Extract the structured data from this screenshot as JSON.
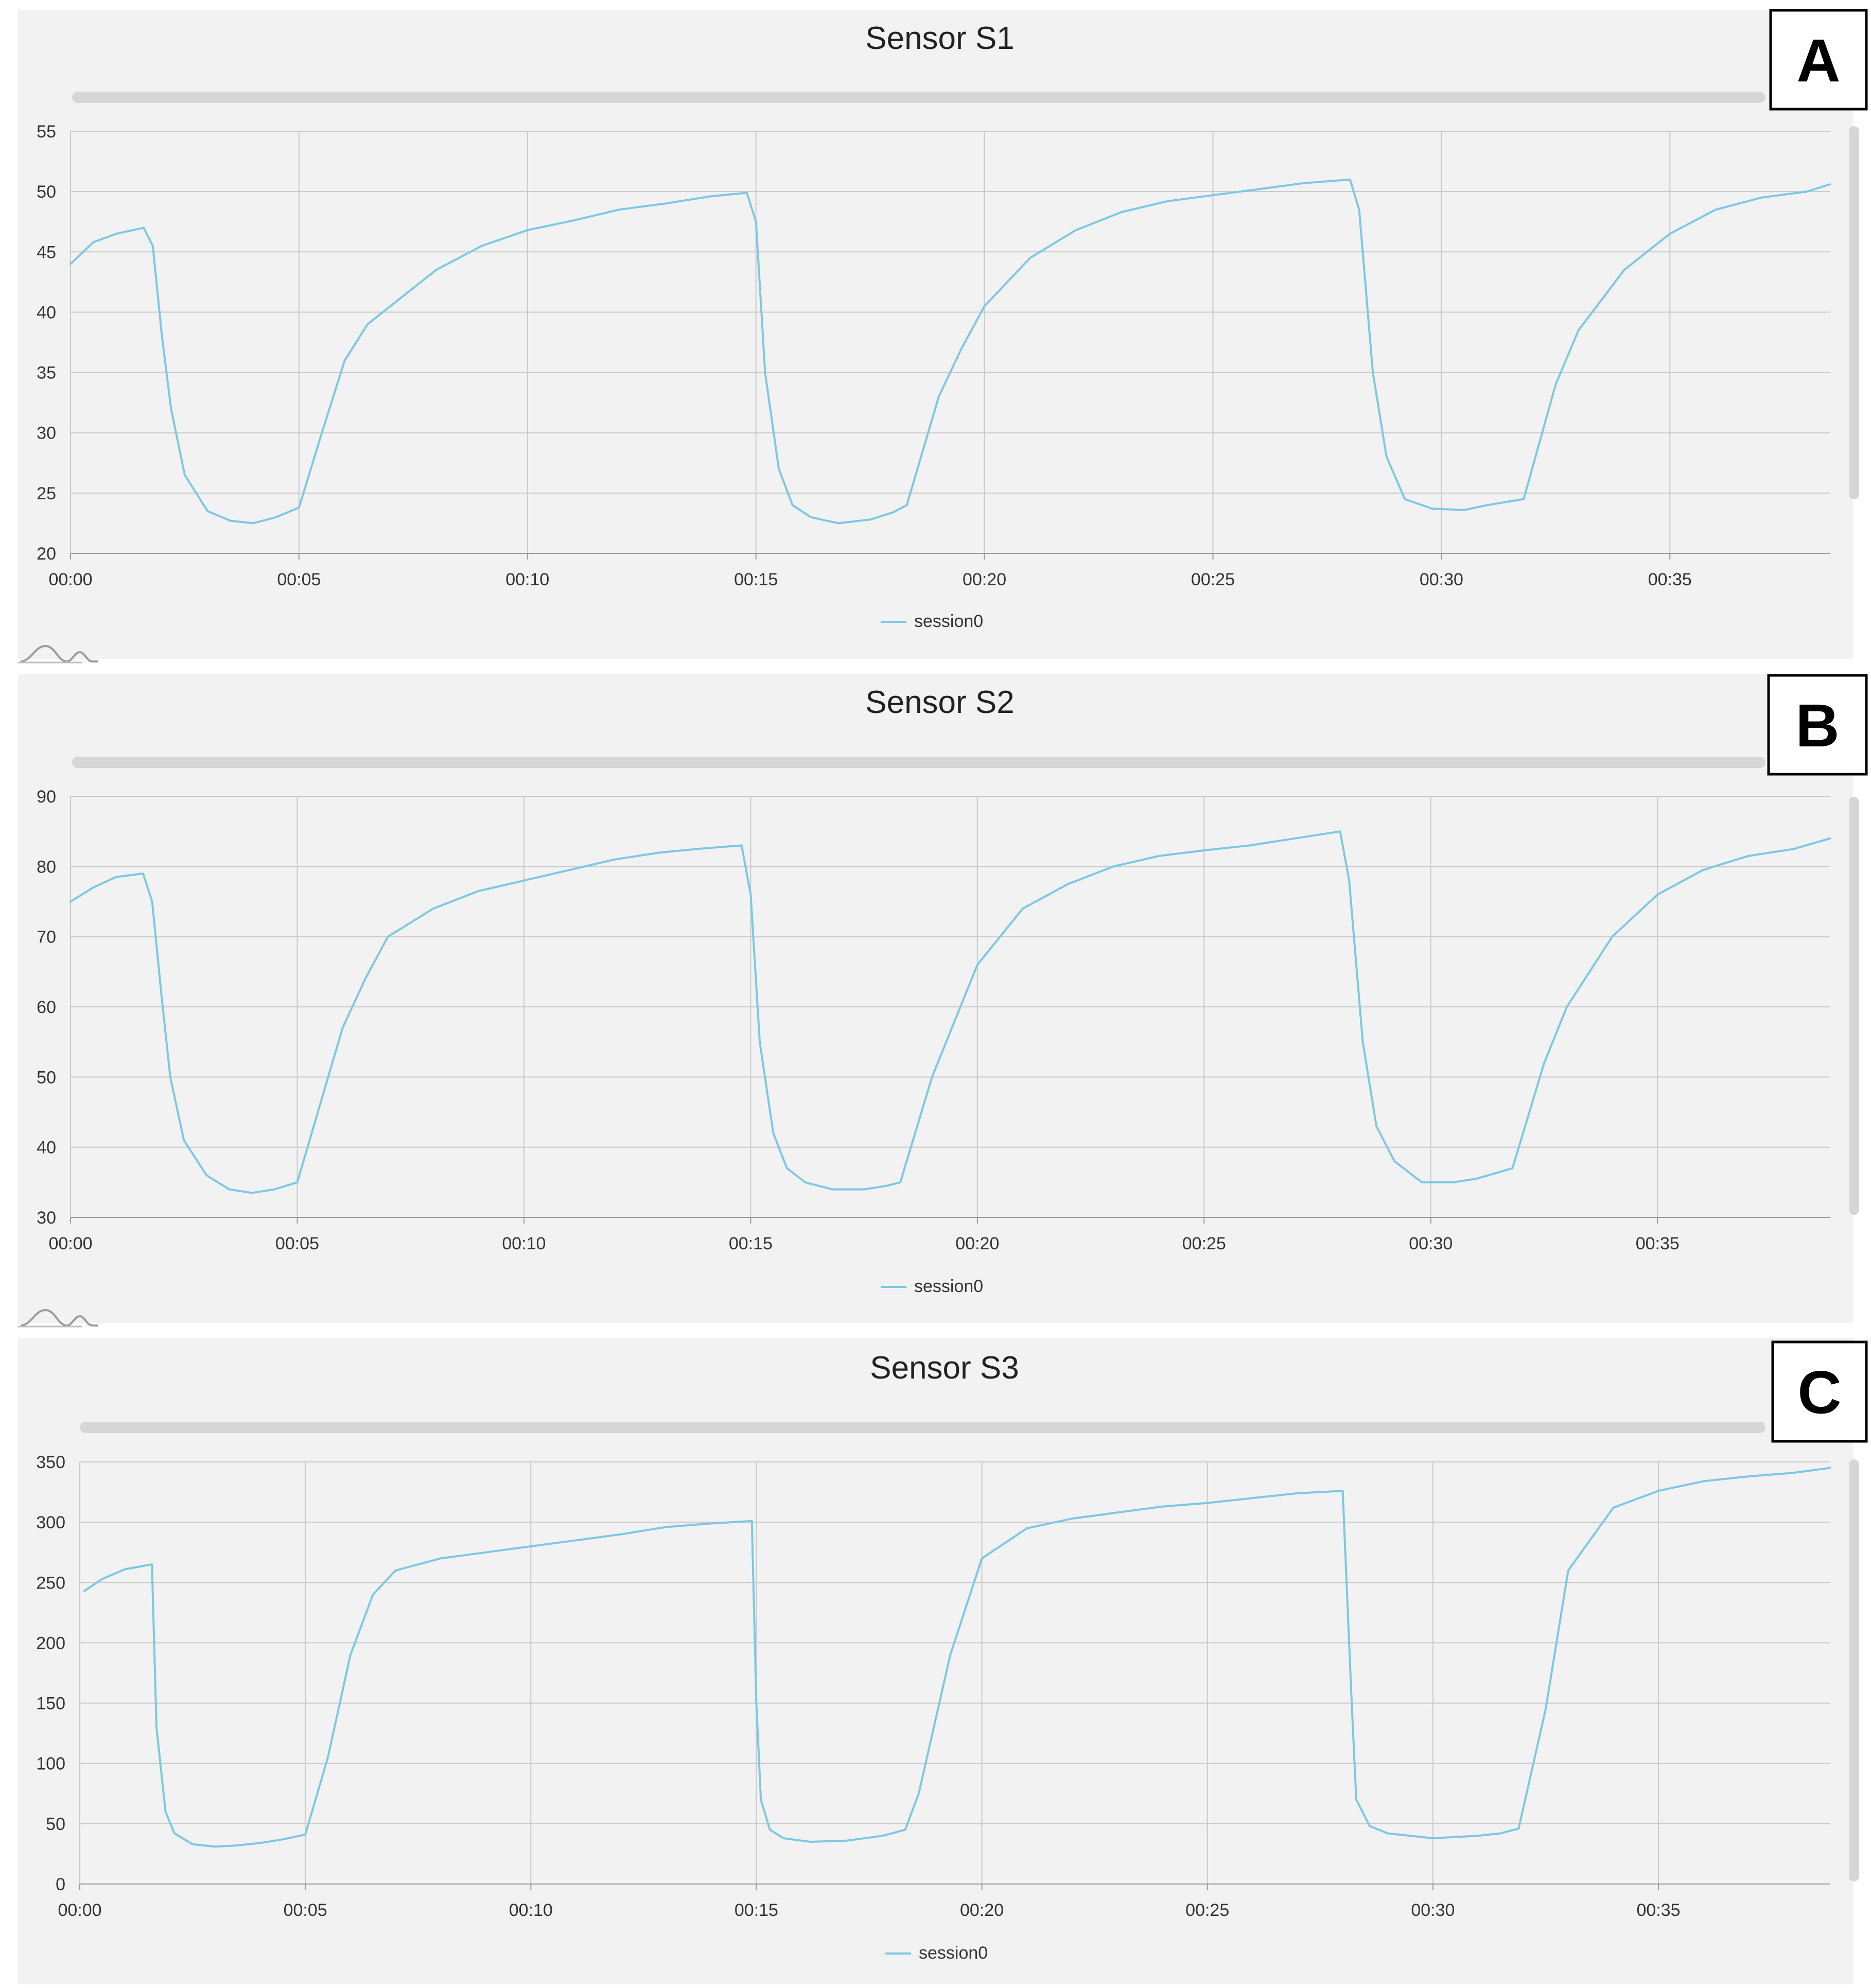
{
  "colors": {
    "series": "#7ec8e3",
    "panel_background": "#f2f2f2",
    "grid": "#c9c9c9",
    "scrollbar": "#d6d6d6",
    "badge_border": "#000000"
  },
  "panels": [
    {
      "badge": "A",
      "legend_label": "session0",
      "icons": {
        "toolbar": "waveform-icon"
      }
    },
    {
      "badge": "B",
      "legend_label": "session0",
      "icons": {
        "toolbar": "waveform-icon"
      }
    },
    {
      "badge": "C",
      "legend_label": "session0",
      "icons": {
        "toolbar": "waveform-icon"
      }
    }
  ],
  "chart_data": [
    {
      "type": "line",
      "title": "Sensor S1",
      "xlabel": "",
      "ylabel": "",
      "x_unit": "mm:ss",
      "xlim": [
        "00:00",
        "00:38.5"
      ],
      "ylim": [
        20,
        55
      ],
      "x_ticks": [
        "00:00",
        "00:05",
        "00:10",
        "00:15",
        "00:20",
        "00:25",
        "00:30",
        "00:35"
      ],
      "y_ticks": [
        20,
        25,
        30,
        35,
        40,
        45,
        50,
        55
      ],
      "grid": true,
      "legend_position": "bottom-center",
      "series": [
        {
          "name": "session0",
          "x": [
            "00:00",
            "00:00.5",
            "00:01",
            "00:01.6",
            "00:01.8",
            "00:02",
            "00:02.2",
            "00:02.5",
            "00:03",
            "00:03.5",
            "00:04",
            "00:04.5",
            "00:05",
            "00:05.5",
            "00:06",
            "00:06.5",
            "00:07",
            "00:08",
            "00:09",
            "00:10",
            "00:11",
            "00:12",
            "00:13",
            "00:14",
            "00:14.8",
            "00:15",
            "00:15.2",
            "00:15.5",
            "00:15.8",
            "00:16.2",
            "00:16.8",
            "00:17.5",
            "00:18",
            "00:18.3",
            "00:19",
            "00:19.5",
            "00:20",
            "00:21",
            "00:22",
            "00:23",
            "00:24",
            "00:25",
            "00:26",
            "00:27",
            "00:28",
            "00:28.2",
            "00:28.5",
            "00:28.8",
            "00:29.2",
            "00:29.8",
            "00:30.5",
            "00:31",
            "00:31.8",
            "00:32.5",
            "00:33",
            "00:34",
            "00:35",
            "00:36",
            "00:37",
            "00:38",
            "00:38.5"
          ],
          "values": [
            44,
            45.8,
            46.5,
            47,
            45.5,
            38,
            32,
            26.5,
            23.5,
            22.7,
            22.5,
            23,
            23.8,
            30,
            36,
            39,
            40.5,
            43.5,
            45.5,
            46.8,
            47.6,
            48.5,
            49,
            49.6,
            49.9,
            47.5,
            35,
            27,
            24,
            23,
            22.5,
            22.8,
            23.4,
            24,
            33,
            37,
            40.5,
            44.5,
            46.8,
            48.3,
            49.2,
            49.7,
            50.2,
            50.7,
            51,
            48.5,
            35,
            28,
            24.5,
            23.7,
            23.6,
            24,
            24.5,
            34,
            38.5,
            43.5,
            46.5,
            48.5,
            49.5,
            50,
            50.6
          ]
        }
      ]
    },
    {
      "type": "line",
      "title": "Sensor S2",
      "xlabel": "",
      "ylabel": "",
      "x_unit": "mm:ss",
      "xlim": [
        "00:00",
        "00:38.8"
      ],
      "ylim": [
        30,
        90
      ],
      "x_ticks": [
        "00:00",
        "00:05",
        "00:10",
        "00:15",
        "00:20",
        "00:25",
        "00:30",
        "00:35"
      ],
      "y_ticks": [
        30,
        40,
        50,
        60,
        70,
        80,
        90
      ],
      "grid": true,
      "legend_position": "bottom-center",
      "series": [
        {
          "name": "session0",
          "x": [
            "00:00",
            "00:00.5",
            "00:01",
            "00:01.6",
            "00:01.8",
            "00:02",
            "00:02.2",
            "00:02.5",
            "00:03",
            "00:03.5",
            "00:04",
            "00:04.5",
            "00:05",
            "00:05.5",
            "00:06",
            "00:06.5",
            "00:07",
            "00:08",
            "00:09",
            "00:10",
            "00:11",
            "00:12",
            "00:13",
            "00:14",
            "00:14.8",
            "00:15",
            "00:15.2",
            "00:15.5",
            "00:15.8",
            "00:16.2",
            "00:16.8",
            "00:17.5",
            "00:18",
            "00:18.3",
            "00:19",
            "00:19.5",
            "00:20",
            "00:21",
            "00:22",
            "00:23",
            "00:24",
            "00:25",
            "00:26",
            "00:27",
            "00:28",
            "00:28.2",
            "00:28.5",
            "00:28.8",
            "00:29.2",
            "00:29.8",
            "00:30.5",
            "00:31",
            "00:31.8",
            "00:32.5",
            "00:33",
            "00:34",
            "00:35",
            "00:36",
            "00:37",
            "00:38",
            "00:38.8"
          ],
          "values": [
            75,
            77,
            78.5,
            79,
            75,
            62,
            50,
            41,
            36,
            34,
            33.5,
            34,
            35,
            46,
            57,
            64,
            70,
            74,
            76.5,
            78,
            79.5,
            81,
            82,
            82.6,
            83,
            76,
            55,
            42,
            37,
            35,
            34,
            34,
            34.5,
            35,
            50,
            58,
            66,
            74,
            77.5,
            80,
            81.5,
            82.3,
            83,
            84,
            85,
            78,
            55,
            43,
            38,
            35,
            35,
            35.5,
            37,
            52,
            60,
            70,
            76,
            79.5,
            81.5,
            82.5,
            84
          ]
        }
      ]
    },
    {
      "type": "line",
      "title": "Sensor S3",
      "xlabel": "",
      "ylabel": "",
      "x_unit": "mm:ss",
      "xlim": [
        "00:00",
        "00:38.8"
      ],
      "ylim": [
        0,
        350
      ],
      "x_ticks": [
        "00:00",
        "00:05",
        "00:10",
        "00:15",
        "00:20",
        "00:25",
        "00:30",
        "00:35"
      ],
      "y_ticks": [
        0,
        50,
        100,
        150,
        200,
        250,
        300,
        350
      ],
      "grid": true,
      "legend_position": "bottom-center",
      "series": [
        {
          "name": "session0",
          "x": [
            "00:00.1",
            "00:00.5",
            "00:01",
            "00:01.6",
            "00:01.7",
            "00:01.9",
            "00:02.1",
            "00:02.5",
            "00:03",
            "00:03.5",
            "00:04",
            "00:04.5",
            "00:05",
            "00:05.5",
            "00:06",
            "00:06.5",
            "00:07",
            "00:08",
            "00:09",
            "00:10",
            "00:11",
            "00:12",
            "00:13",
            "00:14",
            "00:14.9",
            "00:15",
            "00:15.1",
            "00:15.3",
            "00:15.6",
            "00:16.2",
            "00:17",
            "00:17.8",
            "00:18.3",
            "00:18.6",
            "00:19.3",
            "00:20",
            "00:21",
            "00:22",
            "00:23",
            "00:24",
            "00:25",
            "00:26",
            "00:27",
            "00:28",
            "00:28.2",
            "00:28.3",
            "00:28.6",
            "00:29",
            "00:30",
            "00:31",
            "00:31.5",
            "00:31.9",
            "00:32.5",
            "00:33",
            "00:34",
            "00:35",
            "00:36",
            "00:37",
            "00:38",
            "00:38.8"
          ],
          "values": [
            243,
            253,
            261,
            265,
            130,
            60,
            42,
            33,
            31,
            32,
            34,
            37,
            41,
            105,
            190,
            240,
            260,
            270,
            275,
            280,
            285,
            290,
            296,
            299,
            301,
            150,
            70,
            45,
            38,
            35,
            36,
            40,
            45,
            75,
            190,
            270,
            295,
            303,
            308,
            313,
            316,
            320,
            324,
            326,
            150,
            70,
            48,
            42,
            38,
            40,
            42,
            46,
            145,
            260,
            312,
            326,
            334,
            338,
            341,
            345
          ]
        }
      ]
    }
  ]
}
